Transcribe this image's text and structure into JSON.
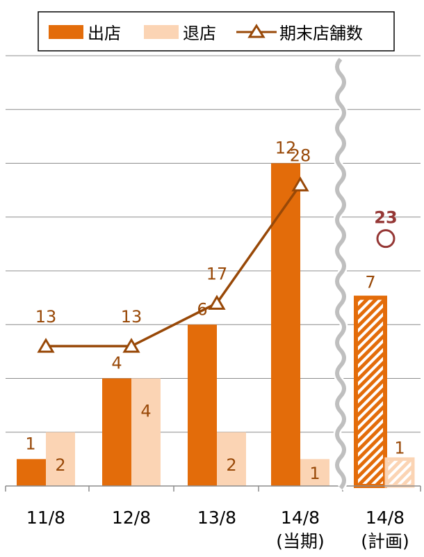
{
  "chart_data": {
    "type": "bar",
    "categories": [
      "11/8",
      "12/8",
      "13/8",
      "14/8",
      "14/8"
    ],
    "category_sublabels": [
      "",
      "",
      "",
      "(当期)",
      "(計画)"
    ],
    "series": [
      {
        "name": "出店",
        "kind": "bar",
        "color": "#E36C0A",
        "values": [
          1,
          4,
          6,
          12,
          7
        ],
        "labels": [
          "1",
          "4",
          "6",
          "12",
          "7"
        ]
      },
      {
        "name": "退店",
        "kind": "bar",
        "color": "#FBD4B4",
        "values": [
          2,
          4,
          2,
          1,
          1
        ],
        "labels": [
          "2",
          "4",
          "2",
          "1",
          "1"
        ]
      },
      {
        "name": "期末店舗数",
        "kind": "line",
        "color": "#984807",
        "marker": "triangle",
        "values": [
          13,
          13,
          17,
          28,
          null
        ],
        "labels": [
          "13",
          "13",
          "17",
          "28",
          ""
        ]
      }
    ],
    "plan_store_count": {
      "value": 23,
      "label": "23",
      "marker": "circle",
      "color": "#953735"
    },
    "planned_category_index": 4,
    "left_scale": {
      "min": 0,
      "max": 16,
      "gridlines": [
        0,
        2,
        4,
        6,
        8,
        10,
        12,
        14,
        16
      ]
    },
    "right_scale": {
      "min": 0,
      "max": 40
    },
    "legend_position": "top",
    "grid": true,
    "axis_break": "wavy line between 14/8(当期) and 14/8(計画)",
    "xlabel": "",
    "ylabel": ""
  }
}
